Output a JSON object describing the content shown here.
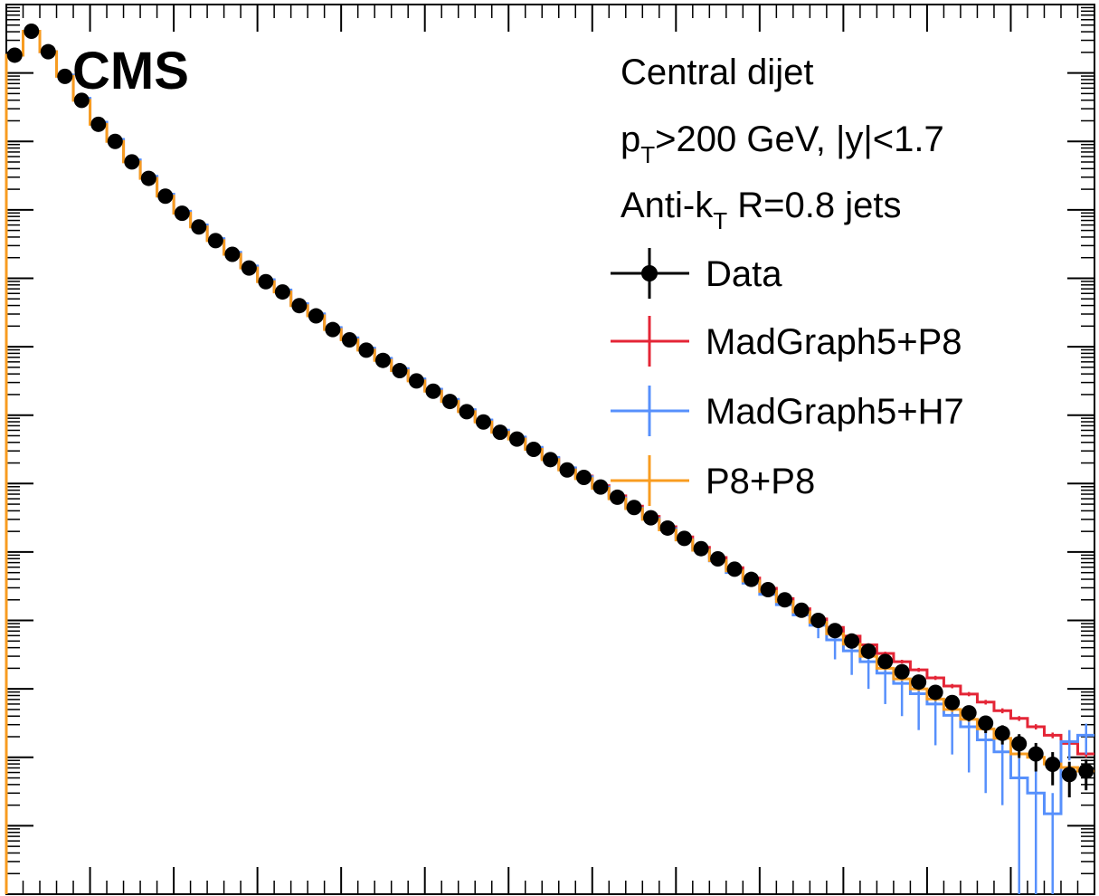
{
  "page": {
    "experiment_label": "CMS",
    "info_lines": [
      {
        "main": "Central dijet"
      },
      {
        "pre": "p",
        "sub": "T",
        "post": ">200 GeV, |y|<1.7"
      },
      {
        "pre": "Anti-k",
        "sub": "T",
        "post": " R=0.8 jets"
      }
    ]
  },
  "chart_data": {
    "type": "line",
    "title": "",
    "xlabel": "",
    "ylabel": "",
    "y_scale": "log",
    "xlim": [
      0,
      65
    ],
    "ylim": [
      0.0001,
      1000000000
    ],
    "grid": false,
    "legend_position": "top-right",
    "bin_edges": [
      0,
      1,
      2,
      3,
      4,
      5,
      6,
      7,
      8,
      9,
      10,
      11,
      12,
      13,
      14,
      15,
      16,
      17,
      18,
      19,
      20,
      21,
      22,
      23,
      24,
      25,
      26,
      27,
      28,
      29,
      30,
      31,
      32,
      33,
      34,
      35,
      36,
      37,
      38,
      39,
      40,
      41,
      42,
      43,
      44,
      45,
      46,
      47,
      48,
      49,
      50,
      51,
      52,
      53,
      54,
      55,
      56,
      57,
      58,
      59,
      60,
      61,
      62,
      63,
      64,
      65
    ],
    "series": [
      {
        "name": "Data",
        "style": "points",
        "color": "#000000",
        "values": [
          181970085,
          407380278,
          204173794,
          89125094,
          39810717,
          17782794,
          10000000,
          5011872,
          2884032,
          1584893,
          891251,
          562341,
          354813,
          223872,
          141254,
          89125,
          63096,
          39811,
          28184,
          17783,
          12589,
          8913,
          6310,
          4467,
          3162,
          2239,
          1585,
          1122,
          794,
          562,
          447,
          316,
          224,
          158,
          123,
          89.1,
          63.1,
          44.7,
          31.6,
          22.4,
          15.8,
          11.2,
          7.94,
          5.62,
          3.98,
          2.82,
          2.0,
          1.41,
          1.0,
          0.71,
          0.5,
          0.355,
          0.251,
          0.178,
          0.126,
          0.0891,
          0.0631,
          0.0447,
          0.0316,
          0.0224,
          0.0158,
          0.0112,
          0.0079,
          0.0056,
          0.0063
        ],
        "errors": [
          0,
          0,
          0,
          0,
          0,
          0,
          0,
          0,
          0,
          0,
          0,
          0,
          0,
          0,
          0,
          0,
          0,
          0,
          0,
          0,
          0,
          0,
          0,
          0,
          0,
          0,
          0,
          0,
          0,
          0,
          0,
          0,
          0,
          0,
          0,
          0,
          0,
          0,
          0,
          0,
          0,
          0,
          0,
          0,
          0,
          0,
          0,
          0,
          0,
          0,
          0.09,
          0.06,
          0.045,
          0.034,
          0.025,
          0.02,
          0.014,
          0.011,
          0.009,
          0.007,
          0.006,
          0.005,
          0.004,
          0.003,
          0.003
        ]
      },
      {
        "name": "MadGraph5+P8",
        "style": "step",
        "color": "#e42536",
        "values": [
          181970085,
          407380278,
          204173794,
          91201084,
          41686938,
          18620871,
          10471285,
          5248075,
          3019952,
          1659587,
          933254,
          588844,
          371535,
          234423,
          147911,
          93325,
          66069,
          41687,
          29512,
          18621,
          13183,
          9333,
          6607,
          4677,
          3311,
          2344,
          1660,
          1175,
          832,
          589,
          468,
          331,
          234,
          166,
          129,
          93.3,
          66.1,
          46.8,
          33.1,
          23.4,
          16.6,
          11.7,
          8.32,
          5.89,
          4.17,
          2.95,
          2.09,
          1.48,
          1.05,
          0.79,
          0.59,
          0.44,
          0.33,
          0.25,
          0.19,
          0.145,
          0.11,
          0.084,
          0.064,
          0.048,
          0.037,
          0.028,
          0.021,
          0.016,
          0.0112
        ],
        "errors": [
          0,
          0,
          0,
          0,
          0,
          0,
          0,
          0,
          0,
          0,
          0,
          0,
          0,
          0,
          0,
          0,
          0,
          0,
          0,
          0,
          0,
          0,
          0,
          0,
          0,
          0,
          0,
          0,
          0,
          0,
          0,
          0,
          0,
          0,
          0,
          0,
          0,
          0,
          0,
          0,
          0,
          0,
          0,
          0,
          0,
          0,
          0,
          0,
          0,
          0,
          0.03,
          0.025,
          0.02,
          0.016,
          0.013,
          0.01,
          0.008,
          0.006,
          0.005,
          0.004,
          0.003,
          0.0025,
          0.002,
          0.0015,
          0.0012
        ]
      },
      {
        "name": "MadGraph5+H7",
        "style": "step",
        "color": "#5790fc",
        "values": [
          181970085,
          407380278,
          204173794,
          93325430,
          42657952,
          19054607,
          10715193,
          5370318,
          3090295,
          1698244,
          954993,
          602560,
          380189,
          239883,
          151356,
          95499,
          67608,
          42658,
          30200,
          19055,
          13490,
          9550,
          6761,
          4786,
          3388,
          2399,
          1698,
          1202,
          851,
          603,
          479,
          339,
          240,
          170,
          126,
          89.1,
          61.7,
          43.7,
          30.9,
          21.9,
          15.1,
          10.7,
          7.4,
          5.0,
          3.5,
          2.4,
          1.7,
          1.2,
          0.85,
          0.52,
          0.36,
          0.25,
          0.17,
          0.12,
          0.085,
          0.06,
          0.041,
          0.028,
          0.018,
          0.012,
          0.005,
          0.003,
          0.0015,
          0.017,
          0.021
        ],
        "errors": [
          0,
          0,
          0,
          0,
          0,
          0,
          0,
          0,
          0,
          0,
          0,
          0,
          0,
          0,
          0,
          0,
          0,
          0,
          0,
          0,
          0,
          0,
          0,
          0,
          0,
          0,
          0,
          0,
          0,
          0,
          0,
          0,
          0,
          0,
          0,
          0,
          0,
          0,
          0,
          0,
          0,
          0,
          0,
          0,
          0,
          0,
          0,
          0,
          0.3,
          0.25,
          0.2,
          0.15,
          0.11,
          0.08,
          0.06,
          0.045,
          0.03,
          0.022,
          0.015,
          0.01,
          0.006,
          0.004,
          0.0015,
          0.008,
          0.01
        ]
      },
      {
        "name": "P8+P8",
        "style": "step",
        "color": "#f89c20",
        "values": [
          181970085,
          407380278,
          204173794,
          89125094,
          39810717,
          17782794,
          10000000,
          5011872,
          2884032,
          1584893,
          891251,
          562341,
          354813,
          223872,
          141254,
          89125,
          63096,
          39811,
          28184,
          17783,
          12589,
          8913,
          6310,
          4467,
          3162,
          2239,
          1585,
          1122,
          794,
          562,
          447,
          316,
          224,
          158,
          118,
          85,
          60,
          43,
          30,
          21,
          15,
          10.6,
          7.5,
          5.3,
          3.76,
          2.66,
          1.88,
          1.33,
          0.94,
          0.64,
          0.45,
          0.3,
          0.2,
          0.14,
          0.1,
          0.071,
          0.05,
          0.036,
          0.026,
          0.019,
          0.0112,
          0.01,
          0.008,
          0.0071,
          0.0063
        ],
        "errors": [
          0,
          0,
          0,
          0,
          0,
          0,
          0,
          0,
          0,
          0,
          0,
          0,
          0,
          0,
          0,
          0,
          0,
          0,
          0,
          0,
          0,
          0,
          0,
          0,
          0,
          0,
          0,
          0,
          0,
          0,
          0,
          0,
          0,
          0,
          0,
          0,
          0,
          0,
          0,
          0,
          0,
          0,
          0,
          0,
          0,
          0,
          0,
          0,
          0,
          0,
          0.02,
          0.015,
          0.012,
          0.009,
          0.007,
          0.005,
          0.004,
          0.003,
          0.0025,
          0.002,
          0.0015,
          0.0012,
          0.001,
          0.0008,
          0.0007
        ]
      }
    ]
  }
}
